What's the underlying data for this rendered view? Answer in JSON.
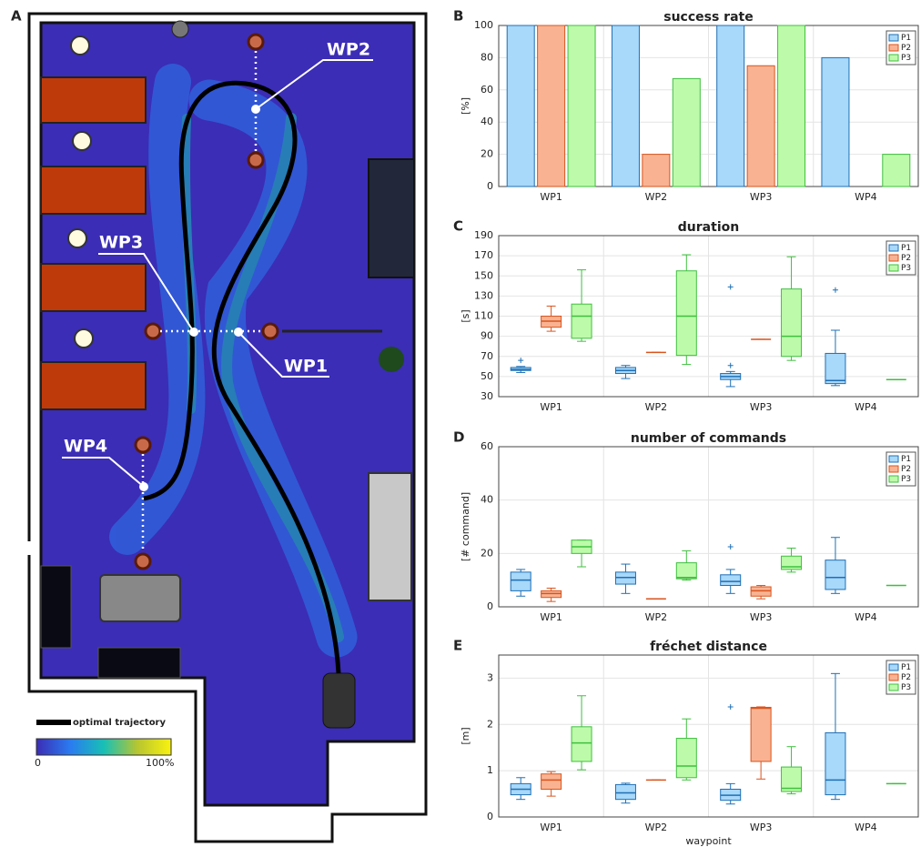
{
  "map": {
    "panel": "A",
    "waypoints": [
      "WP2",
      "WP3",
      "WP1",
      "WP4"
    ],
    "legend": "optimal trajectory",
    "colorbar_min": "0",
    "colorbar_max": "100%"
  },
  "chart_data": [
    {
      "type": "bar",
      "panel": "B",
      "title": "success rate",
      "ylabel": "[%]",
      "categories": [
        "WP1",
        "WP2",
        "WP3",
        "WP4"
      ],
      "series": [
        {
          "name": "P1",
          "color": "#a8d8fa",
          "edgecolor": "#1f6fb4",
          "values": [
            100,
            100,
            100,
            80
          ]
        },
        {
          "name": "P2",
          "color": "#f9b393",
          "edgecolor": "#d9541e",
          "values": [
            100,
            20,
            75,
            0
          ]
        },
        {
          "name": "P3",
          "color": "#bdfbaa",
          "edgecolor": "#3fbf3f",
          "values": [
            100,
            67,
            100,
            20
          ]
        }
      ],
      "ylim": [
        0,
        100
      ],
      "yticks": [
        0,
        20,
        40,
        60,
        80,
        100
      ],
      "grid": true,
      "legend": "upper right"
    },
    {
      "type": "box",
      "panel": "C",
      "title": "duration",
      "ylabel": "[s]",
      "categories": [
        "WP1",
        "WP2",
        "WP3",
        "WP4"
      ],
      "series": [
        {
          "name": "P1",
          "color": "#a8d8fa",
          "edgecolor": "#1f6fb4",
          "values": [
            {
              "min": 54,
              "q1": 56,
              "median": 57,
              "q3": 59,
              "max": 60,
              "outliers": [
                66
              ]
            },
            {
              "min": 48,
              "q1": 53,
              "median": 56,
              "q3": 59,
              "max": 61,
              "outliers": []
            },
            {
              "min": 40,
              "q1": 47,
              "median": 50,
              "q3": 53,
              "max": 55,
              "outliers": [
                61,
                139
              ]
            },
            {
              "min": 41,
              "q1": 43,
              "median": 46,
              "q3": 73,
              "max": 96,
              "outliers": [
                136
              ]
            }
          ]
        },
        {
          "name": "P2",
          "color": "#f9b393",
          "edgecolor": "#d9541e",
          "values": [
            {
              "min": 95,
              "q1": 99,
              "median": 105,
              "q3": 110,
              "max": 120,
              "outliers": []
            },
            {
              "min": 74,
              "q1": 74,
              "median": 74,
              "q3": 74,
              "max": 74,
              "outliers": []
            },
            {
              "min": 87,
              "q1": 87,
              "median": 87,
              "q3": 87,
              "max": 87,
              "outliers": []
            },
            null
          ]
        },
        {
          "name": "P3",
          "color": "#bdfbaa",
          "edgecolor": "#3fbf3f",
          "values": [
            {
              "min": 85,
              "q1": 88,
              "median": 110,
              "q3": 122,
              "max": 156,
              "outliers": []
            },
            {
              "min": 62,
              "q1": 71,
              "median": 110,
              "q3": 155,
              "max": 171,
              "outliers": []
            },
            {
              "min": 66,
              "q1": 70,
              "median": 90,
              "q3": 137,
              "max": 169,
              "outliers": []
            },
            {
              "min": 47,
              "q1": 47,
              "median": 47,
              "q3": 47,
              "max": 47,
              "outliers": []
            }
          ]
        }
      ],
      "ylim": [
        30,
        190
      ],
      "yticks": [
        30,
        50,
        70,
        90,
        110,
        130,
        150,
        170,
        190
      ],
      "grid": true,
      "legend": "upper right"
    },
    {
      "type": "box",
      "panel": "D",
      "title": "number of commands",
      "ylabel": "[# command]",
      "categories": [
        "WP1",
        "WP2",
        "WP3",
        "WP4"
      ],
      "series": [
        {
          "name": "P1",
          "color": "#a8d8fa",
          "edgecolor": "#1f6fb4",
          "values": [
            {
              "min": 4,
              "q1": 6,
              "median": 10,
              "q3": 13,
              "max": 14,
              "outliers": []
            },
            {
              "min": 5,
              "q1": 8.5,
              "median": 11,
              "q3": 13,
              "max": 16,
              "outliers": []
            },
            {
              "min": 5,
              "q1": 8,
              "median": 9.5,
              "q3": 12,
              "max": 14,
              "outliers": [
                22.5
              ]
            },
            {
              "min": 5,
              "q1": 6.5,
              "median": 11,
              "q3": 17.5,
              "max": 26,
              "outliers": []
            }
          ]
        },
        {
          "name": "P2",
          "color": "#f9b393",
          "edgecolor": "#d9541e",
          "values": [
            {
              "min": 2,
              "q1": 3.5,
              "median": 5,
              "q3": 6,
              "max": 7,
              "outliers": []
            },
            {
              "min": 3,
              "q1": 3,
              "median": 3,
              "q3": 3,
              "max": 3,
              "outliers": []
            },
            {
              "min": 3,
              "q1": 4,
              "median": 6,
              "q3": 7.5,
              "max": 8,
              "outliers": []
            },
            null
          ]
        },
        {
          "name": "P3",
          "color": "#bdfbaa",
          "edgecolor": "#3fbf3f",
          "values": [
            {
              "min": 15,
              "q1": 20,
              "median": 22.5,
              "q3": 25,
              "max": 25,
              "outliers": []
            },
            {
              "min": 10,
              "q1": 10.5,
              "median": 11,
              "q3": 16.5,
              "max": 21,
              "outliers": []
            },
            {
              "min": 13,
              "q1": 14,
              "median": 15,
              "q3": 19,
              "max": 22,
              "outliers": []
            },
            {
              "min": 8,
              "q1": 8,
              "median": 8,
              "q3": 8,
              "max": 8,
              "outliers": []
            }
          ]
        }
      ],
      "ylim": [
        0,
        60
      ],
      "yticks": [
        0,
        20,
        40,
        60
      ],
      "grid": true,
      "legend": "upper right"
    },
    {
      "type": "box",
      "panel": "E",
      "title": "fréchet distance",
      "ylabel": "[m]",
      "xlabel": "waypoint",
      "categories": [
        "WP1",
        "WP2",
        "WP3",
        "WP4"
      ],
      "series": [
        {
          "name": "P1",
          "color": "#a8d8fa",
          "edgecolor": "#1f6fb4",
          "values": [
            {
              "min": 0.38,
              "q1": 0.48,
              "median": 0.6,
              "q3": 0.72,
              "max": 0.85,
              "outliers": []
            },
            {
              "min": 0.3,
              "q1": 0.38,
              "median": 0.52,
              "q3": 0.7,
              "max": 0.73,
              "outliers": []
            },
            {
              "min": 0.28,
              "q1": 0.36,
              "median": 0.47,
              "q3": 0.6,
              "max": 0.72,
              "outliers": [
                2.38
              ]
            },
            {
              "min": 0.38,
              "q1": 0.48,
              "median": 0.8,
              "q3": 1.82,
              "max": 3.1,
              "outliers": []
            }
          ]
        },
        {
          "name": "P2",
          "color": "#f9b393",
          "edgecolor": "#d9541e",
          "values": [
            {
              "min": 0.45,
              "q1": 0.6,
              "median": 0.8,
              "q3": 0.93,
              "max": 0.98,
              "outliers": []
            },
            {
              "min": 0.8,
              "q1": 0.8,
              "median": 0.8,
              "q3": 0.8,
              "max": 0.8,
              "outliers": []
            },
            {
              "min": 0.82,
              "q1": 1.2,
              "median": 2.35,
              "q3": 2.37,
              "max": 2.38,
              "outliers": []
            },
            null
          ]
        },
        {
          "name": "P3",
          "color": "#bdfbaa",
          "edgecolor": "#3fbf3f",
          "values": [
            {
              "min": 1.02,
              "q1": 1.2,
              "median": 1.6,
              "q3": 1.95,
              "max": 2.62,
              "outliers": []
            },
            {
              "min": 0.8,
              "q1": 0.85,
              "median": 1.1,
              "q3": 1.7,
              "max": 2.12,
              "outliers": []
            },
            {
              "min": 0.5,
              "q1": 0.55,
              "median": 0.62,
              "q3": 1.08,
              "max": 1.52,
              "outliers": []
            },
            {
              "min": 0.72,
              "q1": 0.72,
              "median": 0.72,
              "q3": 0.72,
              "max": 0.72,
              "outliers": []
            }
          ]
        }
      ],
      "ylim": [
        0,
        3.5
      ],
      "yticks": [
        0,
        1,
        2,
        3
      ],
      "grid": true,
      "legend": "upper right"
    }
  ]
}
